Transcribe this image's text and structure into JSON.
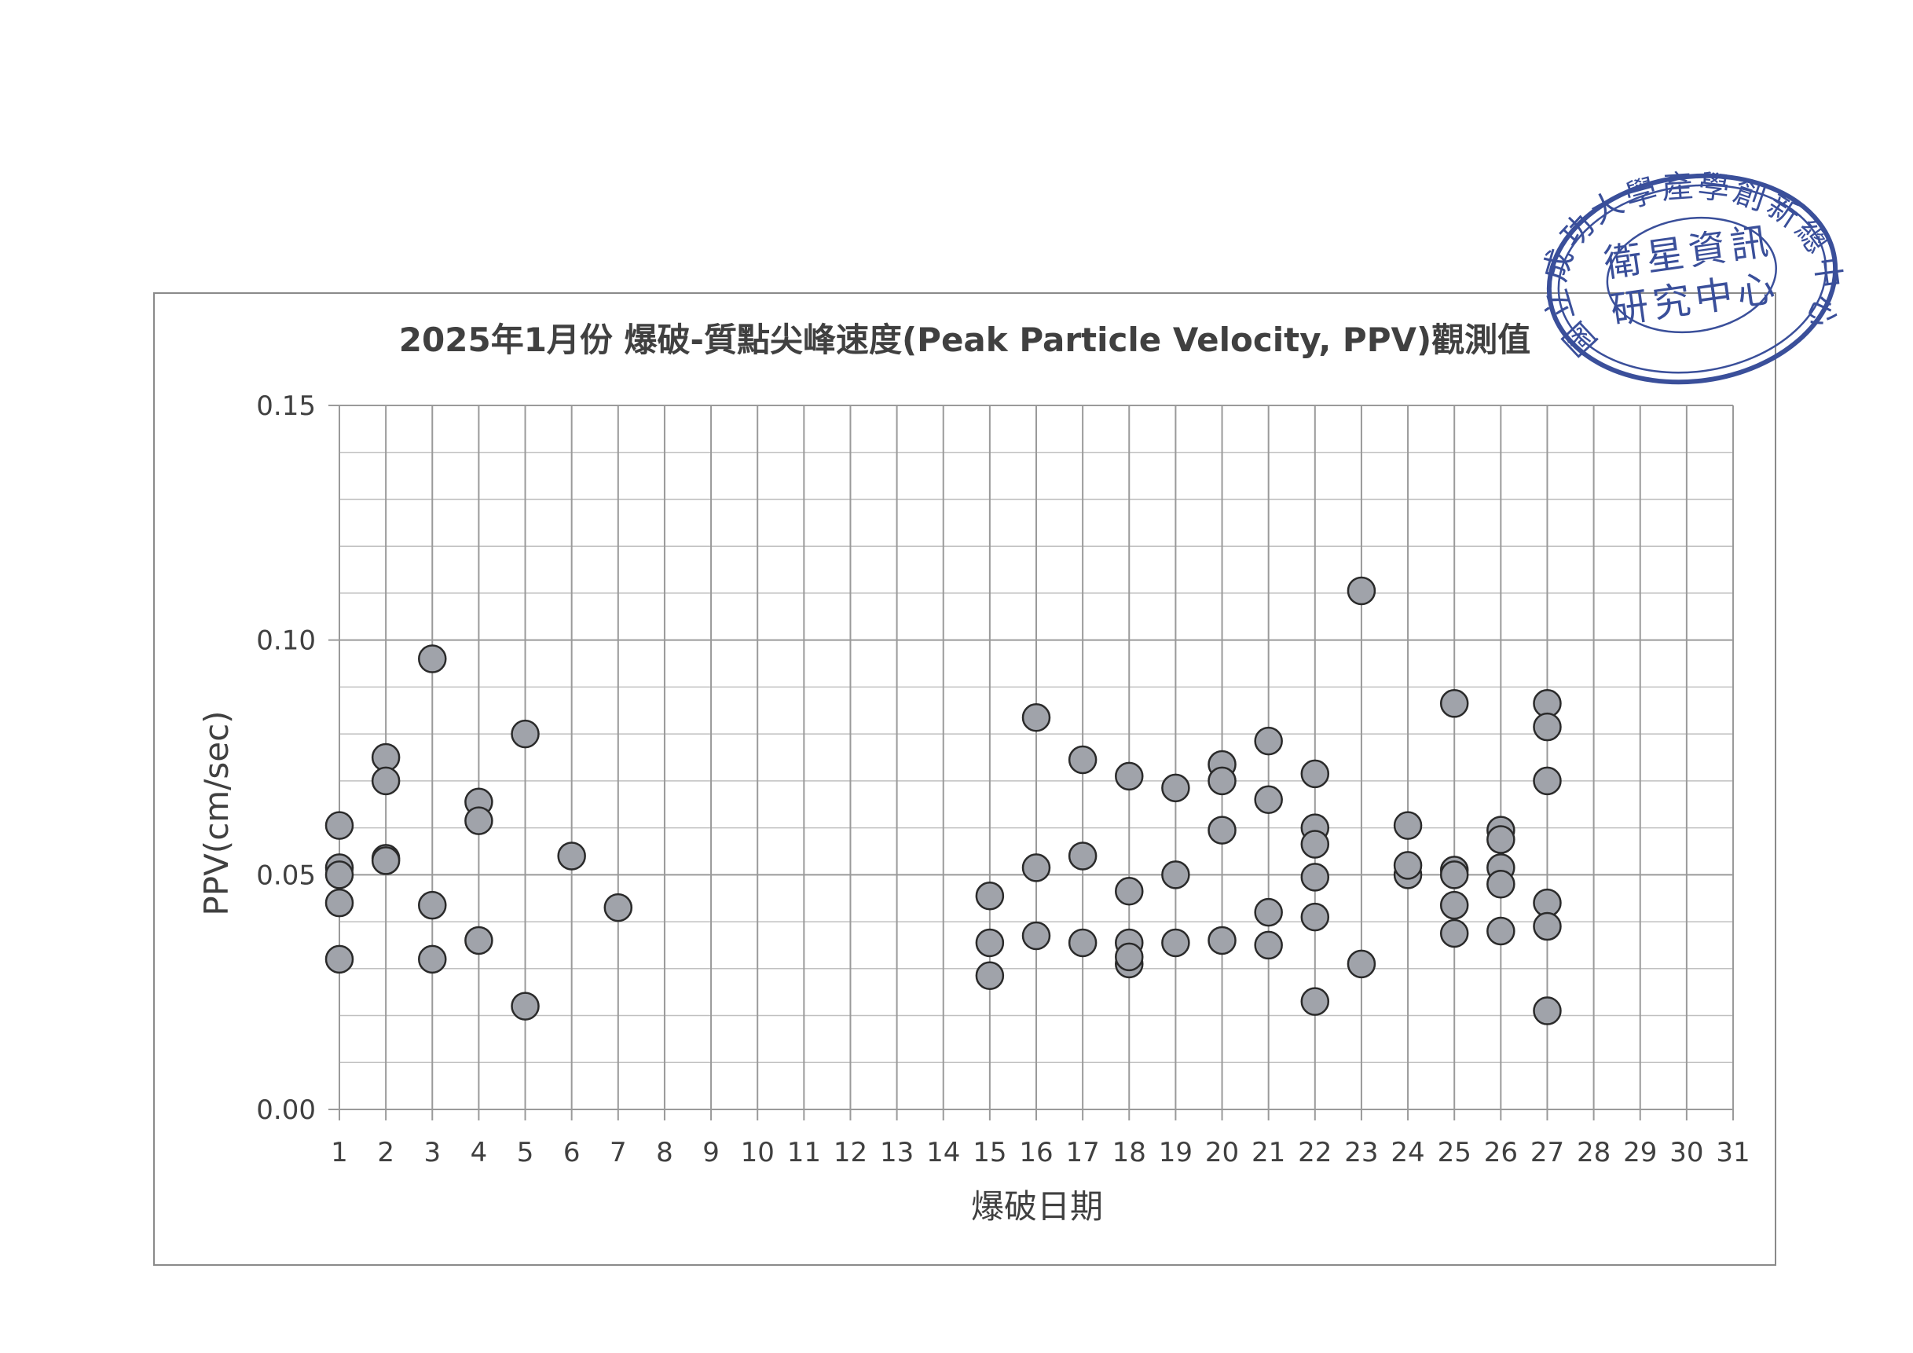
{
  "chart_data": {
    "type": "scatter",
    "title": "2025年1月份 爆破-質點尖峰速度(Peak Particle Velocity, PPV)觀測值",
    "xlabel": "爆破日期",
    "ylabel": "PPV(cm/sec)",
    "xlim": [
      1,
      31
    ],
    "ylim": [
      0,
      0.15
    ],
    "x_ticks": [
      "1",
      "2",
      "3",
      "4",
      "5",
      "6",
      "7",
      "8",
      "9",
      "10",
      "11",
      "12",
      "13",
      "14",
      "15",
      "16",
      "17",
      "18",
      "19",
      "20",
      "21",
      "22",
      "23",
      "24",
      "25",
      "26",
      "27",
      "28",
      "29",
      "30",
      "31"
    ],
    "y_ticks": [
      "0.00",
      "0.05",
      "0.10",
      "0.15"
    ],
    "grid": true,
    "legend": "none",
    "marker_color": "#a0a3aa",
    "points": [
      [
        1,
        0.0605
      ],
      [
        1,
        0.0515
      ],
      [
        1,
        0.05
      ],
      [
        1,
        0.044
      ],
      [
        1,
        0.032
      ],
      [
        2,
        0.075
      ],
      [
        2,
        0.07
      ],
      [
        2,
        0.0535
      ],
      [
        2,
        0.053
      ],
      [
        3,
        0.096
      ],
      [
        3,
        0.0435
      ],
      [
        3,
        0.032
      ],
      [
        4,
        0.0655
      ],
      [
        4,
        0.0615
      ],
      [
        4,
        0.036
      ],
      [
        5,
        0.08
      ],
      [
        5,
        0.022
      ],
      [
        6,
        0.054
      ],
      [
        7,
        0.043
      ],
      [
        15,
        0.0455
      ],
      [
        15,
        0.0355
      ],
      [
        15,
        0.0285
      ],
      [
        16,
        0.0835
      ],
      [
        16,
        0.0515
      ],
      [
        16,
        0.037
      ],
      [
        17,
        0.0745
      ],
      [
        17,
        0.054
      ],
      [
        17,
        0.0355
      ],
      [
        18,
        0.071
      ],
      [
        18,
        0.0465
      ],
      [
        18,
        0.0355
      ],
      [
        18,
        0.031
      ],
      [
        18,
        0.0325
      ],
      [
        19,
        0.0685
      ],
      [
        19,
        0.05
      ],
      [
        19,
        0.0355
      ],
      [
        20,
        0.0735
      ],
      [
        20,
        0.07
      ],
      [
        20,
        0.0595
      ],
      [
        20,
        0.036
      ],
      [
        21,
        0.0785
      ],
      [
        21,
        0.066
      ],
      [
        21,
        0.042
      ],
      [
        21,
        0.035
      ],
      [
        22,
        0.0715
      ],
      [
        22,
        0.06
      ],
      [
        22,
        0.0565
      ],
      [
        22,
        0.0495
      ],
      [
        22,
        0.041
      ],
      [
        22,
        0.023
      ],
      [
        23,
        0.1105
      ],
      [
        23,
        0.031
      ],
      [
        24,
        0.0605
      ],
      [
        24,
        0.05
      ],
      [
        24,
        0.052
      ],
      [
        25,
        0.0865
      ],
      [
        25,
        0.051
      ],
      [
        25,
        0.05
      ],
      [
        25,
        0.0435
      ],
      [
        25,
        0.0375
      ],
      [
        26,
        0.0595
      ],
      [
        26,
        0.0575
      ],
      [
        26,
        0.0515
      ],
      [
        26,
        0.048
      ],
      [
        26,
        0.038
      ],
      [
        27,
        0.0865
      ],
      [
        27,
        0.0815
      ],
      [
        27,
        0.07
      ],
      [
        27,
        0.044
      ],
      [
        27,
        0.039
      ],
      [
        27,
        0.021
      ]
    ]
  },
  "seal": {
    "outer_text": "國立成功大學產學創新總中心",
    "inner_line1": "衛星資訊",
    "inner_line2": "研究中心",
    "color": "#3a4f9a"
  }
}
